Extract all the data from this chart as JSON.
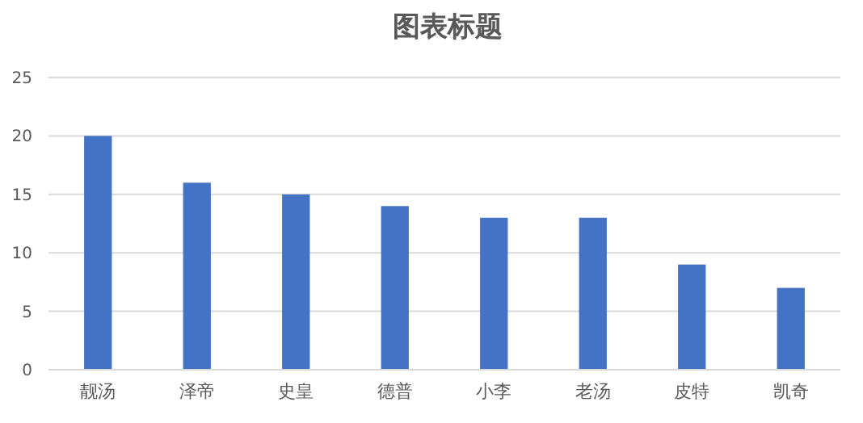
{
  "chart_data": {
    "type": "bar",
    "title": "图表标题",
    "categories": [
      "靓汤",
      "泽帝",
      "史皇",
      "德普",
      "小李",
      "老汤",
      "皮特",
      "凯奇"
    ],
    "values": [
      20,
      16,
      15,
      14,
      13,
      13,
      9,
      7
    ],
    "color": "#4472c4",
    "ylim": [
      0,
      25
    ],
    "yticks": [
      0,
      5,
      10,
      15,
      20,
      25
    ],
    "grid": "y"
  }
}
